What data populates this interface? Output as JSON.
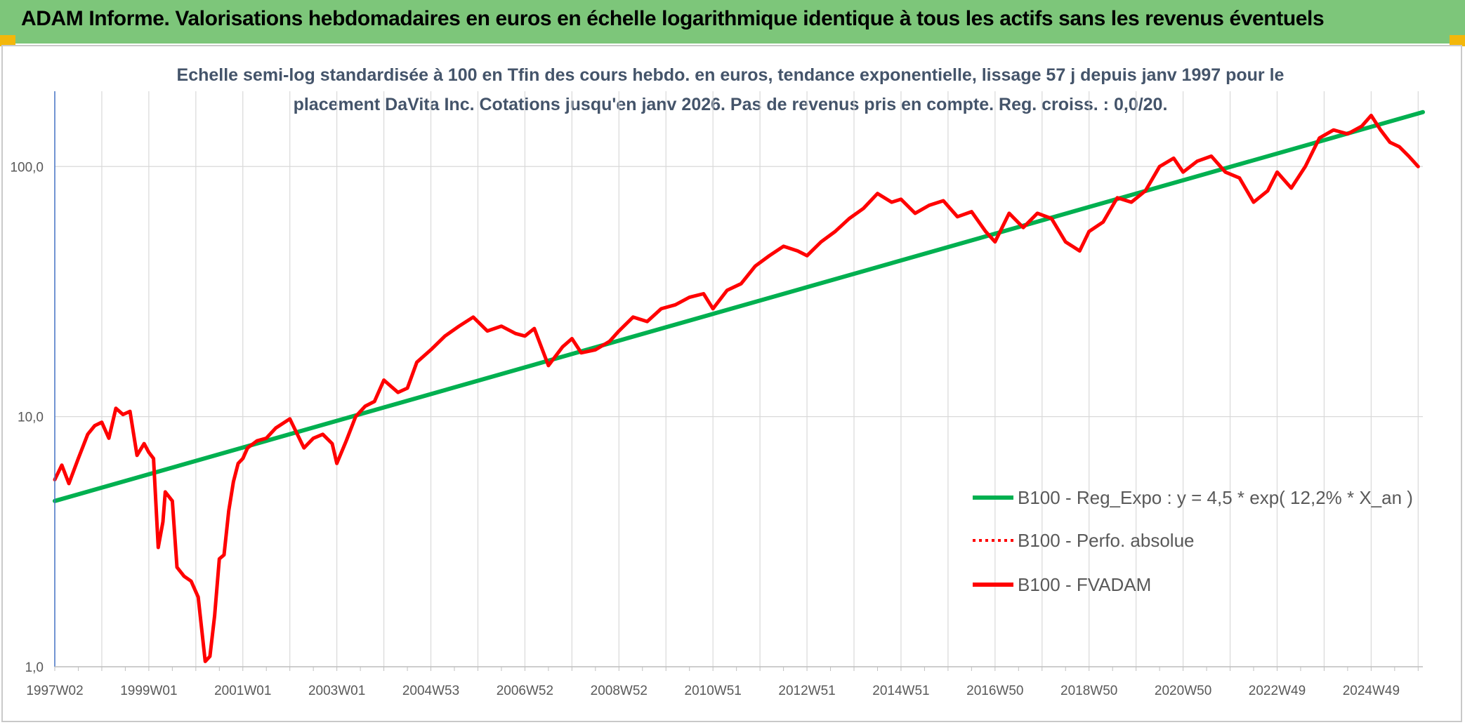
{
  "header": {
    "title": "ADAM Informe. Valorisations hebdomadaires en euros en échelle logarithmique identique à tous les actifs sans les revenus éventuels"
  },
  "chart_data": {
    "type": "line",
    "subtitle_lines": [
      "Echelle semi-log standardisée à 100 en Tfin des cours hebdo. en euros, tendance exponentielle, lissage 57 j depuis janv 1997 pour le",
      "placement DaVita Inc. Cotations jusqu'en janv 2026. Pas de revenus pris en compte. Reg. croiss. : 0,0/20."
    ],
    "y_scale": "log",
    "ylim": [
      1,
      200
    ],
    "xlim": [
      1997.0,
      2026.1
    ],
    "ytick_values": [
      1,
      10,
      100
    ],
    "ytick_labels": [
      "1,0",
      "10,0",
      "100,0"
    ],
    "xtick_labels": [
      "1997W02",
      "1999W01",
      "2001W01",
      "2003W01",
      "2004W53",
      "2006W52",
      "2008W52",
      "2010W51",
      "2012W51",
      "2014W51",
      "2016W50",
      "2018W50",
      "2020W50",
      "2022W49",
      "2024W49"
    ],
    "xtick_years": [
      1997.0,
      1999.0,
      2001.0,
      2003.0,
      2005.0,
      2007.0,
      2009.0,
      2011.0,
      2013.0,
      2015.0,
      2017.0,
      2019.0,
      2021.0,
      2023.0,
      2025.0
    ],
    "grid": true,
    "legend_position": "bottom-right",
    "colors": {
      "trend": "#00b050",
      "perf": "#ff0000",
      "fvadam": "#ff0000",
      "grid": "#d9d9d9",
      "axis": "#4472c4"
    },
    "series": [
      {
        "name": "B100 - Reg_Expo : y = 4,5 * exp( 12,2% *  X_an )",
        "style": "trend",
        "x": [
          1997.0,
          2026.1
        ],
        "y": [
          4.6,
          165
        ]
      },
      {
        "name": "B100 - Perfo. absolue",
        "style": "dotted",
        "x": [],
        "y": []
      },
      {
        "name": "B100 - FVADAM",
        "style": "solid",
        "x": [
          1997.0,
          1997.15,
          1997.3,
          1997.5,
          1997.7,
          1997.85,
          1998.0,
          1998.15,
          1998.3,
          1998.45,
          1998.6,
          1998.75,
          1998.9,
          1999.0,
          1999.1,
          1999.2,
          1999.3,
          1999.35,
          1999.5,
          1999.6,
          1999.75,
          1999.9,
          2000.05,
          2000.2,
          2000.3,
          2000.4,
          2000.5,
          2000.6,
          2000.7,
          2000.8,
          2000.9,
          2001.0,
          2001.1,
          2001.3,
          2001.5,
          2001.7,
          2002.0,
          2002.3,
          2002.5,
          2002.7,
          2002.9,
          2003.0,
          2003.2,
          2003.4,
          2003.6,
          2003.8,
          2004.0,
          2004.3,
          2004.5,
          2004.7,
          2005.0,
          2005.3,
          2005.6,
          2005.9,
          2006.2,
          2006.5,
          2006.8,
          2007.0,
          2007.2,
          2007.5,
          2007.8,
          2008.0,
          2008.2,
          2008.5,
          2008.8,
          2009.0,
          2009.3,
          2009.6,
          2009.9,
          2010.2,
          2010.5,
          2010.8,
          2011.0,
          2011.3,
          2011.6,
          2011.9,
          2012.2,
          2012.5,
          2012.8,
          2013.0,
          2013.3,
          2013.6,
          2013.9,
          2014.2,
          2014.5,
          2014.8,
          2015.0,
          2015.3,
          2015.6,
          2015.9,
          2016.2,
          2016.5,
          2016.8,
          2017.0,
          2017.3,
          2017.6,
          2017.9,
          2018.2,
          2018.5,
          2018.8,
          2019.0,
          2019.3,
          2019.6,
          2019.9,
          2020.2,
          2020.5,
          2020.8,
          2021.0,
          2021.3,
          2021.6,
          2021.9,
          2022.2,
          2022.5,
          2022.8,
          2023.0,
          2023.3,
          2023.6,
          2023.9,
          2024.2,
          2024.5,
          2024.8,
          2025.0,
          2025.2,
          2025.4,
          2025.6,
          2025.8,
          2026.0
        ],
        "y": [
          5.6,
          6.4,
          5.4,
          6.8,
          8.5,
          9.2,
          9.5,
          8.2,
          10.8,
          10.2,
          10.5,
          7.0,
          7.8,
          7.2,
          6.8,
          3.0,
          3.8,
          5.0,
          4.6,
          2.5,
          2.3,
          2.2,
          1.9,
          1.05,
          1.1,
          1.6,
          2.7,
          2.8,
          4.2,
          5.5,
          6.5,
          6.8,
          7.5,
          8.0,
          8.2,
          9.0,
          9.8,
          7.5,
          8.2,
          8.5,
          7.8,
          6.5,
          8.0,
          10.0,
          11.0,
          11.5,
          14.0,
          12.5,
          13.0,
          16.5,
          18.5,
          21.0,
          23.0,
          25.0,
          22.0,
          23.0,
          21.5,
          21.0,
          22.5,
          16.0,
          19.0,
          20.5,
          18.0,
          18.5,
          20.0,
          22.0,
          25.0,
          24.0,
          27.0,
          28.0,
          30.0,
          31.0,
          27.0,
          32.0,
          34.0,
          40.0,
          44.0,
          48.0,
          46.0,
          44.0,
          50.0,
          55.0,
          62.0,
          68.0,
          78.0,
          72.0,
          74.0,
          65.0,
          70.0,
          73.0,
          63.0,
          66.0,
          55.0,
          50.0,
          65.0,
          57.0,
          65.0,
          62.0,
          50.0,
          46.0,
          55.0,
          60.0,
          75.0,
          72.0,
          80.0,
          100.0,
          108.0,
          95.0,
          105.0,
          110.0,
          95.0,
          90.0,
          72.0,
          80.0,
          95.0,
          82.0,
          100.0,
          130.0,
          140.0,
          135.0,
          145.0,
          160.0,
          140.0,
          125.0,
          120.0,
          110.0,
          100.0
        ]
      }
    ]
  }
}
